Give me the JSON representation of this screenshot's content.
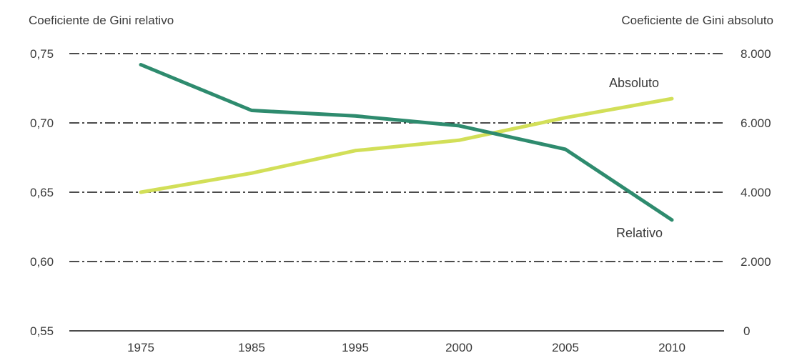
{
  "chart_data": {
    "type": "line",
    "left_axis_label": "Coeficiente de Gini relativo",
    "right_axis_label": "Coeficiente de Gini absoluto",
    "x": [
      "1975",
      "1985",
      "1995",
      "2000",
      "2005",
      "2010"
    ],
    "y_left": {
      "ticks": [
        "0,75",
        "0,70",
        "0,65",
        "0,60",
        "0,55"
      ],
      "tick_values": [
        0.75,
        0.7,
        0.65,
        0.6,
        0.55
      ],
      "range": [
        0.55,
        0.75
      ]
    },
    "y_right": {
      "ticks": [
        "8.000",
        "6.000",
        "4.000",
        "2.000",
        "0"
      ],
      "tick_values": [
        8000,
        6000,
        4000,
        2000,
        0
      ],
      "range": [
        0,
        8000
      ]
    },
    "series": [
      {
        "name": "Relativo",
        "axis": "left",
        "color": "#2e8b6e",
        "values": [
          0.742,
          0.709,
          0.705,
          0.698,
          0.681,
          0.63
        ]
      },
      {
        "name": "Absoluto",
        "axis": "right",
        "color": "#d2df58",
        "values": [
          4000,
          4550,
          5200,
          5500,
          6150,
          6700
        ]
      }
    ],
    "grid": true,
    "grid_style": "dash-dot"
  }
}
